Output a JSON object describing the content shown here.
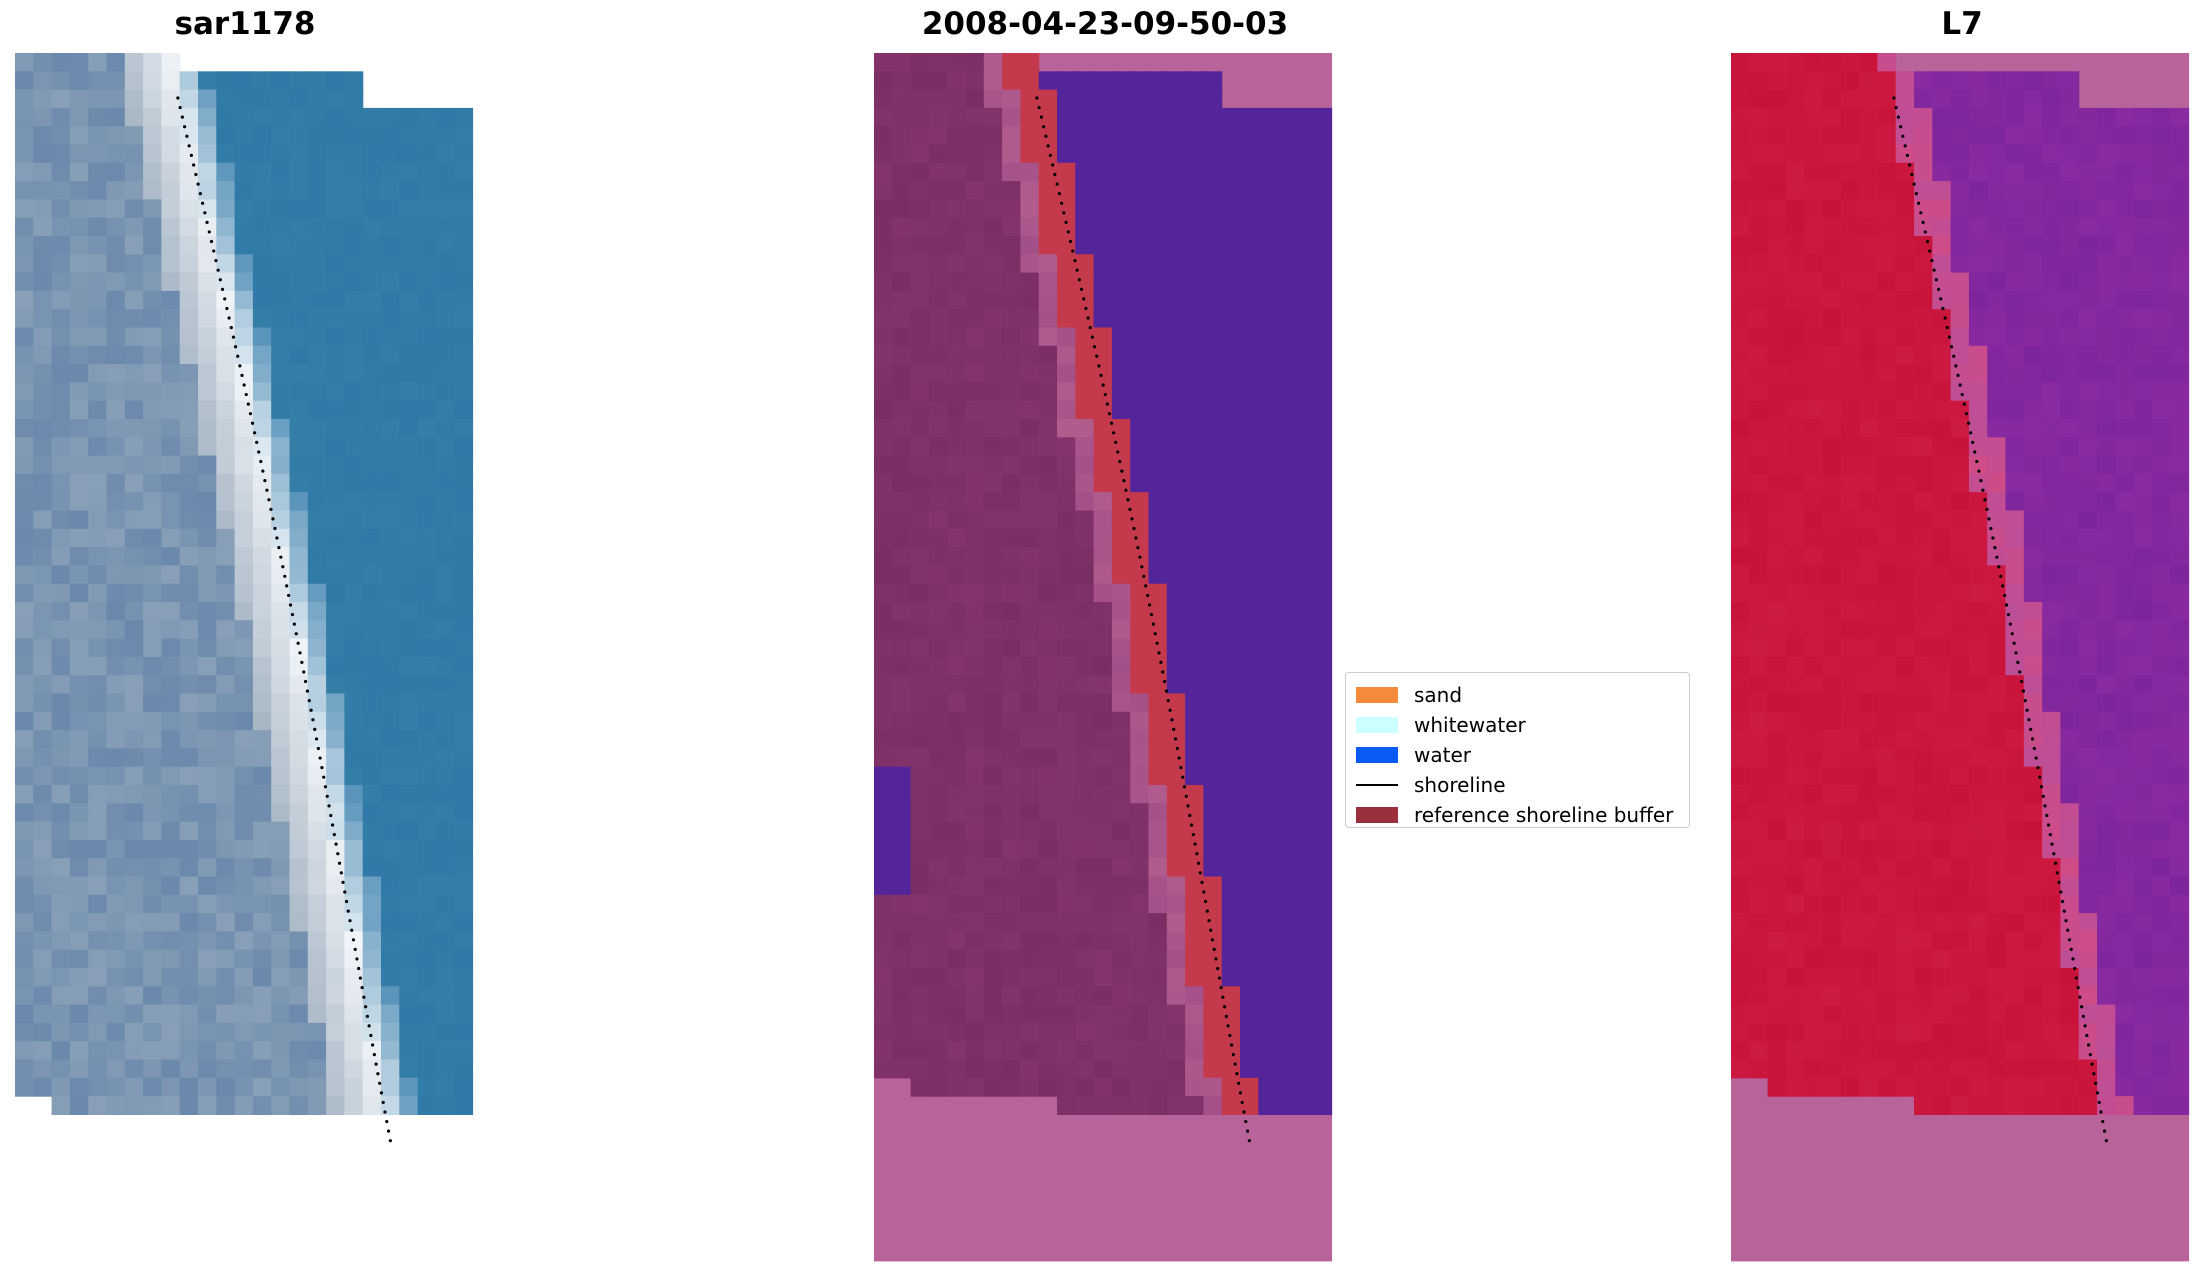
{
  "panels": [
    {
      "title": "sar1178"
    },
    {
      "title": "2008-04-23-09-50-03"
    },
    {
      "title": "L7"
    }
  ],
  "legend": {
    "items": [
      {
        "label": "sand",
        "color": "#f58a3c",
        "kind": "patch"
      },
      {
        "label": "whitewater",
        "color": "#ccffff",
        "kind": "patch"
      },
      {
        "label": "water",
        "color": "#0a5bf5",
        "kind": "patch"
      },
      {
        "label": "shoreline",
        "color": "#000000",
        "kind": "line"
      },
      {
        "label": "reference shoreline buffer",
        "color": "#9a2f3e",
        "kind": "patch"
      }
    ]
  },
  "colors": {
    "sar_water": "#2f78a8",
    "sar_sand": "#9fb0bf",
    "sar_whitewater": "#f4f8fb",
    "class_background": "#b8639a",
    "class_water": "#54249a",
    "class_land": "#84336c",
    "class_buffer": "#c43a4c",
    "class_sand_light": "#a45088",
    "l7_land": "#c8123a",
    "l7_water": "#8a2aa0",
    "l7_background": "#b8639a",
    "l7_mid": "#cf4c86"
  }
}
